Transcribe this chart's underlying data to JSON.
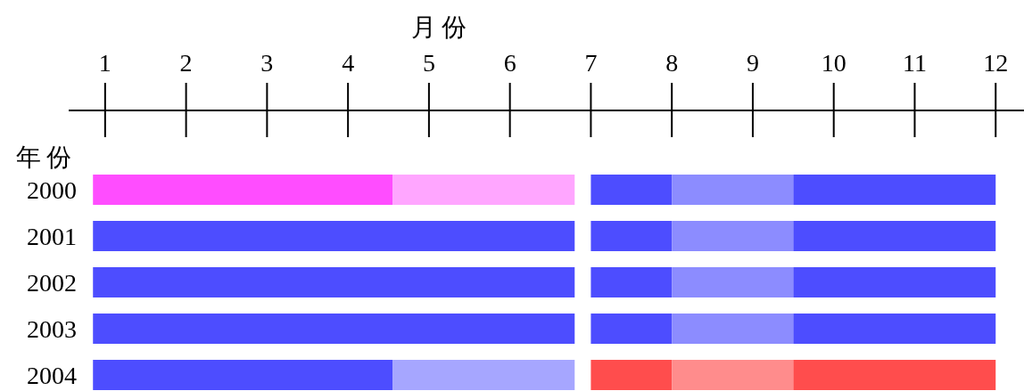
{
  "chart_data": {
    "type": "bar",
    "orientation": "horizontal",
    "xlabel": "月份",
    "ylabel": "年份",
    "categories": [
      "2000",
      "2001",
      "2002",
      "2003",
      "2004"
    ],
    "xlim": [
      0.55,
      12.35
    ],
    "xticks": [
      1,
      2,
      3,
      4,
      5,
      6,
      7,
      8,
      9,
      10,
      11,
      12
    ],
    "series": [
      {
        "colors": [
          "#ff4dff",
          "#4d4dff",
          "#4d4dff",
          "#4d4dff",
          "#4d4dff"
        ],
        "base": [
          0.85,
          0.85,
          0.85,
          0.85,
          0.85
        ],
        "values": [
          3.7,
          5.95,
          5.95,
          5.95,
          3.7
        ]
      },
      {
        "colors": [
          "#ffa6ff",
          null,
          null,
          null,
          "#a6a6ff"
        ],
        "base": [
          4.55,
          null,
          null,
          null,
          4.55
        ],
        "values": [
          2.25,
          null,
          null,
          null,
          2.25
        ]
      },
      {
        "colors": [
          "#4d4dff",
          "#4d4dff",
          "#4d4dff",
          "#4d4dff",
          "#ff4d4d"
        ],
        "base": [
          7,
          7,
          7,
          7,
          7
        ],
        "values": [
          1,
          1,
          1,
          1,
          1
        ]
      },
      {
        "colors": [
          "#8c8cff",
          "#8c8cff",
          "#8c8cff",
          "#8c8cff",
          "#ff8c8c"
        ],
        "base": [
          8,
          8,
          8,
          8,
          8
        ],
        "values": [
          1.5,
          1.5,
          1.5,
          1.5,
          1.5
        ]
      },
      {
        "colors": [
          "#4d4dff",
          "#4d4dff",
          "#4d4dff",
          "#4d4dff",
          "#ff4d4d"
        ],
        "base": [
          9.5,
          9.5,
          9.5,
          9.5,
          9.5
        ],
        "values": [
          2.5,
          2.5,
          2.5,
          2.5,
          2.5
        ]
      }
    ]
  }
}
